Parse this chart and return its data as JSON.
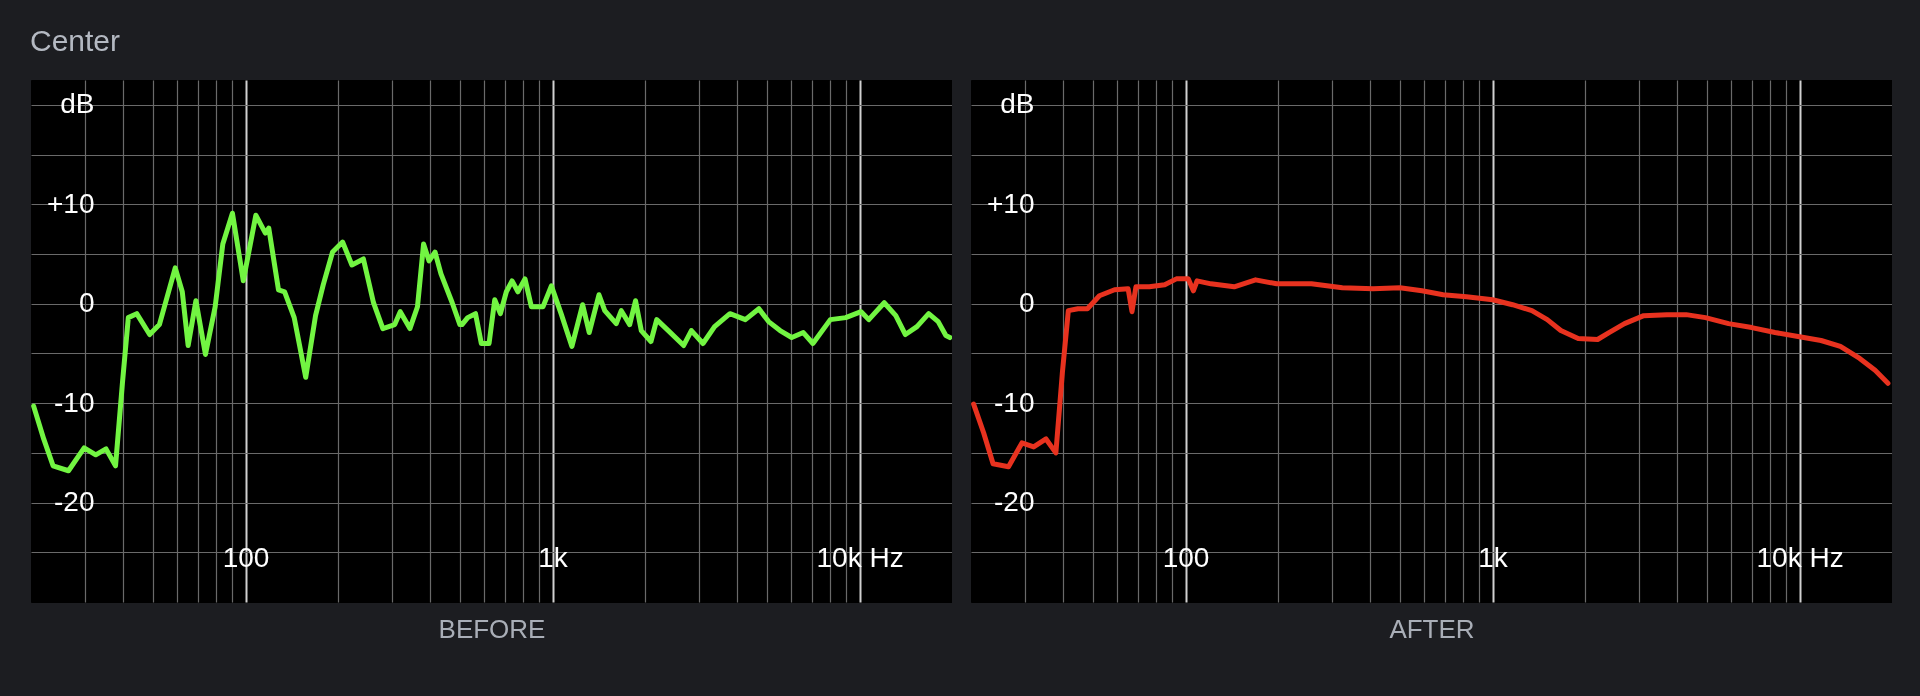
{
  "chart_data": [
    {
      "type": "line",
      "title": "Center",
      "xlabel": "BEFORE",
      "log": "x",
      "grid": true,
      "xlim": [
        20,
        20000
      ],
      "ylim": [
        -30,
        22.5
      ],
      "xticks": [
        {
          "value": 30,
          "label": null
        },
        {
          "value": 40,
          "label": null
        },
        {
          "value": 50,
          "label": null
        },
        {
          "value": 60,
          "label": null
        },
        {
          "value": 70,
          "label": null
        },
        {
          "value": 80,
          "label": null
        },
        {
          "value": 90,
          "label": null
        },
        100,
        {
          "value": 200,
          "label": null
        },
        {
          "value": 300,
          "label": null
        },
        {
          "value": 400,
          "label": null
        },
        {
          "value": 500,
          "label": null
        },
        {
          "value": 600,
          "label": null
        },
        {
          "value": 700,
          "label": null
        },
        {
          "value": 800,
          "label": null
        },
        {
          "value": 900,
          "label": null
        },
        {
          "value": 1000,
          "label": "1k"
        },
        {
          "value": 2000,
          "label": null
        },
        {
          "value": 3000,
          "label": null
        },
        {
          "value": 4000,
          "label": null
        },
        {
          "value": 5000,
          "label": null
        },
        {
          "value": 6000,
          "label": null
        },
        {
          "value": 7000,
          "label": null
        },
        {
          "value": 8000,
          "label": null
        },
        {
          "value": 9000,
          "label": null
        },
        {
          "value": 10000,
          "label": "10k Hz"
        }
      ],
      "yticks": [
        {
          "value": -25,
          "label": null
        },
        -20,
        {
          "value": -15,
          "label": null
        },
        -10,
        {
          "value": -5,
          "label": null
        },
        0,
        {
          "value": 5,
          "label": null
        },
        {
          "value": 10,
          "label": "+10"
        },
        {
          "value": 15,
          "label": null
        },
        {
          "value": 20,
          "label": "dB"
        }
      ],
      "series": [
        {
          "color": "#72f542",
          "x": [
            20.4,
            22,
            23.6,
            26.5,
            29.8,
            32.5,
            35.1,
            37.7,
            39.7,
            41.5,
            44.2,
            48.7,
            52.4,
            59,
            62.2,
            65,
            68.9,
            74,
            79.6,
            84.3,
            90.6,
            98.3,
            108,
            116,
            119,
            128,
            134,
            144,
            157,
            169,
            179,
            192,
            207,
            222,
            242,
            261,
            280,
            306,
            319,
            343,
            363,
            380,
            396,
            414,
            433,
            471,
            499,
            507,
            529,
            561,
            586,
            621,
            648,
            676,
            707,
            738,
            771,
            813,
            853,
            931,
            991,
            1066,
            1156,
            1253,
            1316,
            1416,
            1479,
            1612,
            1674,
            1783,
            1863,
            1945,
            2091,
            2184,
            2382,
            2673,
            2832,
            3090,
            3370,
            3781,
            4246,
            4698,
            5054,
            5509,
            6012,
            6557,
            7047,
            8030,
            9011,
            10115,
            10715,
            12030,
            13120,
            14100,
            15380,
            16790,
            18030,
            19100,
            19680
          ],
          "values": [
            -10.3,
            -13.6,
            -16.3,
            -16.8,
            -14.5,
            -15.2,
            -14.6,
            -16.3,
            -8,
            -1.4,
            -1,
            -3.1,
            -2.1,
            3.6,
            1.2,
            -4.2,
            0.3,
            -5.1,
            -0.3,
            6,
            9.1,
            2.3,
            8.9,
            7.1,
            7.6,
            1.4,
            1.2,
            -1.4,
            -7.4,
            -1.2,
            1.9,
            5.2,
            6.2,
            3.9,
            4.5,
            0.1,
            -2.5,
            -2.1,
            -0.8,
            -2.5,
            -0.3,
            6,
            4.3,
            5.2,
            3,
            0.1,
            -2.1,
            -2.1,
            -1.4,
            -1,
            -4,
            -4,
            0.4,
            -1,
            1.2,
            2.3,
            1.2,
            2.5,
            -0.3,
            -0.3,
            1.8,
            -1,
            -4.3,
            -0.1,
            -2.9,
            0.9,
            -0.7,
            -2,
            -0.7,
            -2.1,
            0.3,
            -2.7,
            -3.8,
            -1.6,
            -2.7,
            -4.2,
            -2.7,
            -4,
            -2.3,
            -1,
            -1.6,
            -0.5,
            -1.8,
            -2.7,
            -3.4,
            -2.9,
            -4,
            -1.6,
            -1.4,
            -0.8,
            -1.6,
            0.1,
            -1.2,
            -3.1,
            -2.3,
            -1,
            -1.8,
            -3.2,
            -3.4
          ]
        }
      ]
    },
    {
      "type": "line",
      "xlabel": "AFTER",
      "log": "x",
      "grid": true,
      "xlim": [
        20,
        20000
      ],
      "ylim": [
        -30,
        22.5
      ],
      "xticks": [
        {
          "value": 30,
          "label": null
        },
        {
          "value": 40,
          "label": null
        },
        {
          "value": 50,
          "label": null
        },
        {
          "value": 60,
          "label": null
        },
        {
          "value": 70,
          "label": null
        },
        {
          "value": 80,
          "label": null
        },
        {
          "value": 90,
          "label": null
        },
        100,
        {
          "value": 200,
          "label": null
        },
        {
          "value": 300,
          "label": null
        },
        {
          "value": 400,
          "label": null
        },
        {
          "value": 500,
          "label": null
        },
        {
          "value": 600,
          "label": null
        },
        {
          "value": 700,
          "label": null
        },
        {
          "value": 800,
          "label": null
        },
        {
          "value": 900,
          "label": null
        },
        {
          "value": 1000,
          "label": "1k"
        },
        {
          "value": 2000,
          "label": null
        },
        {
          "value": 3000,
          "label": null
        },
        {
          "value": 4000,
          "label": null
        },
        {
          "value": 5000,
          "label": null
        },
        {
          "value": 6000,
          "label": null
        },
        {
          "value": 7000,
          "label": null
        },
        {
          "value": 8000,
          "label": null
        },
        {
          "value": 9000,
          "label": null
        },
        {
          "value": 10000,
          "label": "10k Hz"
        }
      ],
      "yticks": [
        {
          "value": -25,
          "label": null
        },
        -20,
        {
          "value": -15,
          "label": null
        },
        -10,
        {
          "value": -5,
          "label": null
        },
        0,
        {
          "value": 5,
          "label": null
        },
        {
          "value": 10,
          "label": "+10"
        },
        {
          "value": 15,
          "label": null
        },
        {
          "value": 20,
          "label": "dB"
        }
      ],
      "series": [
        {
          "color": "#e8321f",
          "x": [
            20.4,
            22,
            23.6,
            26.5,
            29.3,
            32,
            35.1,
            37.8,
            39.7,
            41.5,
            44.6,
            47.9,
            52.4,
            58.7,
            65,
            66.9,
            68.9,
            76.2,
            85.5,
            93.3,
            102,
            106,
            109,
            121,
            144,
            169,
            198,
            257,
            324,
            408,
            499,
            589,
            690,
            822,
            1000,
            1162,
            1343,
            1507,
            1668,
            1900,
            2198,
            2395,
            2690,
            3107,
            3697,
            4272,
            4937,
            5870,
            6987,
            8317,
            9885,
            11750,
            13580,
            15700,
            17620,
            19400
          ],
          "values": [
            -10.1,
            -13,
            -16.1,
            -16.4,
            -14,
            -14.4,
            -13.6,
            -15,
            -6.9,
            -0.7,
            -0.5,
            -0.5,
            0.8,
            1.4,
            1.5,
            -0.8,
            1.7,
            1.7,
            1.9,
            2.5,
            2.5,
            1.3,
            2.3,
            2,
            1.7,
            2.4,
            2,
            2,
            1.6,
            1.5,
            1.6,
            1.3,
            0.9,
            0.7,
            0.4,
            -0.1,
            -0.7,
            -1.6,
            -2.7,
            -3.5,
            -3.6,
            -2.9,
            -2,
            -1.2,
            -1.1,
            -1.1,
            -1.4,
            -2,
            -2.4,
            -2.9,
            -3.3,
            -3.7,
            -4.3,
            -5.5,
            -6.7,
            -8
          ]
        }
      ]
    }
  ]
}
